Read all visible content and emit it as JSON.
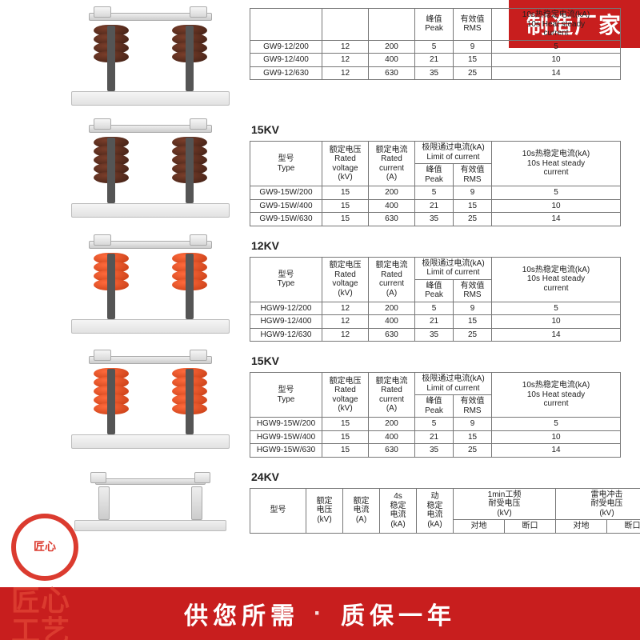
{
  "header_badge": "制造厂家",
  "footer": {
    "left": "供您所需",
    "right": "质保一年"
  },
  "corner": {
    "ring_text": "匠心",
    "big_text": "匠心\n工艺"
  },
  "colors": {
    "brand_red": "#c81e1e",
    "accent_red": "#db3b2f",
    "insulator_brown": "#4a2418",
    "insulator_orange": "#e5491e",
    "border_gray": "#777777",
    "metal_light": "#e8e8e8"
  },
  "common_headers": {
    "type": "型号\nType",
    "rated_voltage": "额定电压\nRated voltage\n(kV)",
    "rated_current": "额定电流\nRated current\n(A)",
    "limit_group": "极限通过电流(kA)\nLimit of current",
    "peak": "峰值\nPeak",
    "rms": "有效值\nRMS",
    "heat_steady": "10s热稳定电流(kA)\n10s Heat steady\ncurrent"
  },
  "sections": [
    {
      "id": "s1",
      "kv_label": "",
      "product_style": "brown-4",
      "headers_visible": "partial-top",
      "rows": [
        {
          "type": "GW9-12/200",
          "kv": 12,
          "a": 200,
          "peak": 5,
          "rms": 9,
          "heat": 5
        },
        {
          "type": "GW9-12/400",
          "kv": 12,
          "a": 400,
          "peak": 21,
          "rms": 15,
          "heat": 10
        },
        {
          "type": "GW9-12/630",
          "kv": 12,
          "a": 630,
          "peak": 35,
          "rms": 25,
          "heat": 14
        }
      ]
    },
    {
      "id": "s2",
      "kv_label": "15KV",
      "product_style": "brown-5",
      "headers_visible": "full",
      "rows": [
        {
          "type": "GW9-15W/200",
          "kv": 15,
          "a": 200,
          "peak": 5,
          "rms": 9,
          "heat": 5
        },
        {
          "type": "GW9-15W/400",
          "kv": 15,
          "a": 400,
          "peak": 21,
          "rms": 15,
          "heat": 10
        },
        {
          "type": "GW9-15W/630",
          "kv": 15,
          "a": 630,
          "peak": 35,
          "rms": 25,
          "heat": 14
        }
      ]
    },
    {
      "id": "s3",
      "kv_label": "12KV",
      "product_style": "orange-4",
      "headers_visible": "full",
      "rows": [
        {
          "type": "HGW9-12/200",
          "kv": 12,
          "a": 200,
          "peak": 5,
          "rms": 9,
          "heat": 5
        },
        {
          "type": "HGW9-12/400",
          "kv": 12,
          "a": 400,
          "peak": 21,
          "rms": 15,
          "heat": 10
        },
        {
          "type": "HGW9-12/630",
          "kv": 12,
          "a": 630,
          "peak": 35,
          "rms": 25,
          "heat": 14
        }
      ]
    },
    {
      "id": "s4",
      "kv_label": "15KV",
      "product_style": "orange-5",
      "headers_visible": "full",
      "rows": [
        {
          "type": "HGW9-15W/200",
          "kv": 15,
          "a": 200,
          "peak": 5,
          "rms": 9,
          "heat": 5
        },
        {
          "type": "HGW9-15W/400",
          "kv": 15,
          "a": 400,
          "peak": 21,
          "rms": 15,
          "heat": 10
        },
        {
          "type": "HGW9-15W/630",
          "kv": 15,
          "a": 630,
          "peak": 35,
          "rms": 25,
          "heat": 14
        }
      ]
    }
  ],
  "section24": {
    "kv_label": "24KV",
    "product_style": "bare",
    "headers": {
      "type": "型号",
      "rated_voltage": "额定\n电压\n(kV)",
      "rated_current": "额定\n电流\n(A)",
      "s4": "4s\n稳定\n电流\n(kA)",
      "dyn": "动\n稳定\n电流\n(kA)",
      "pf1min": "1min工频\n耐受电压\n(kV)",
      "lightning": "雷电冲击\n耐受电压\n(kV)",
      "sub_earth": "对地",
      "sub_break": "断口"
    }
  }
}
